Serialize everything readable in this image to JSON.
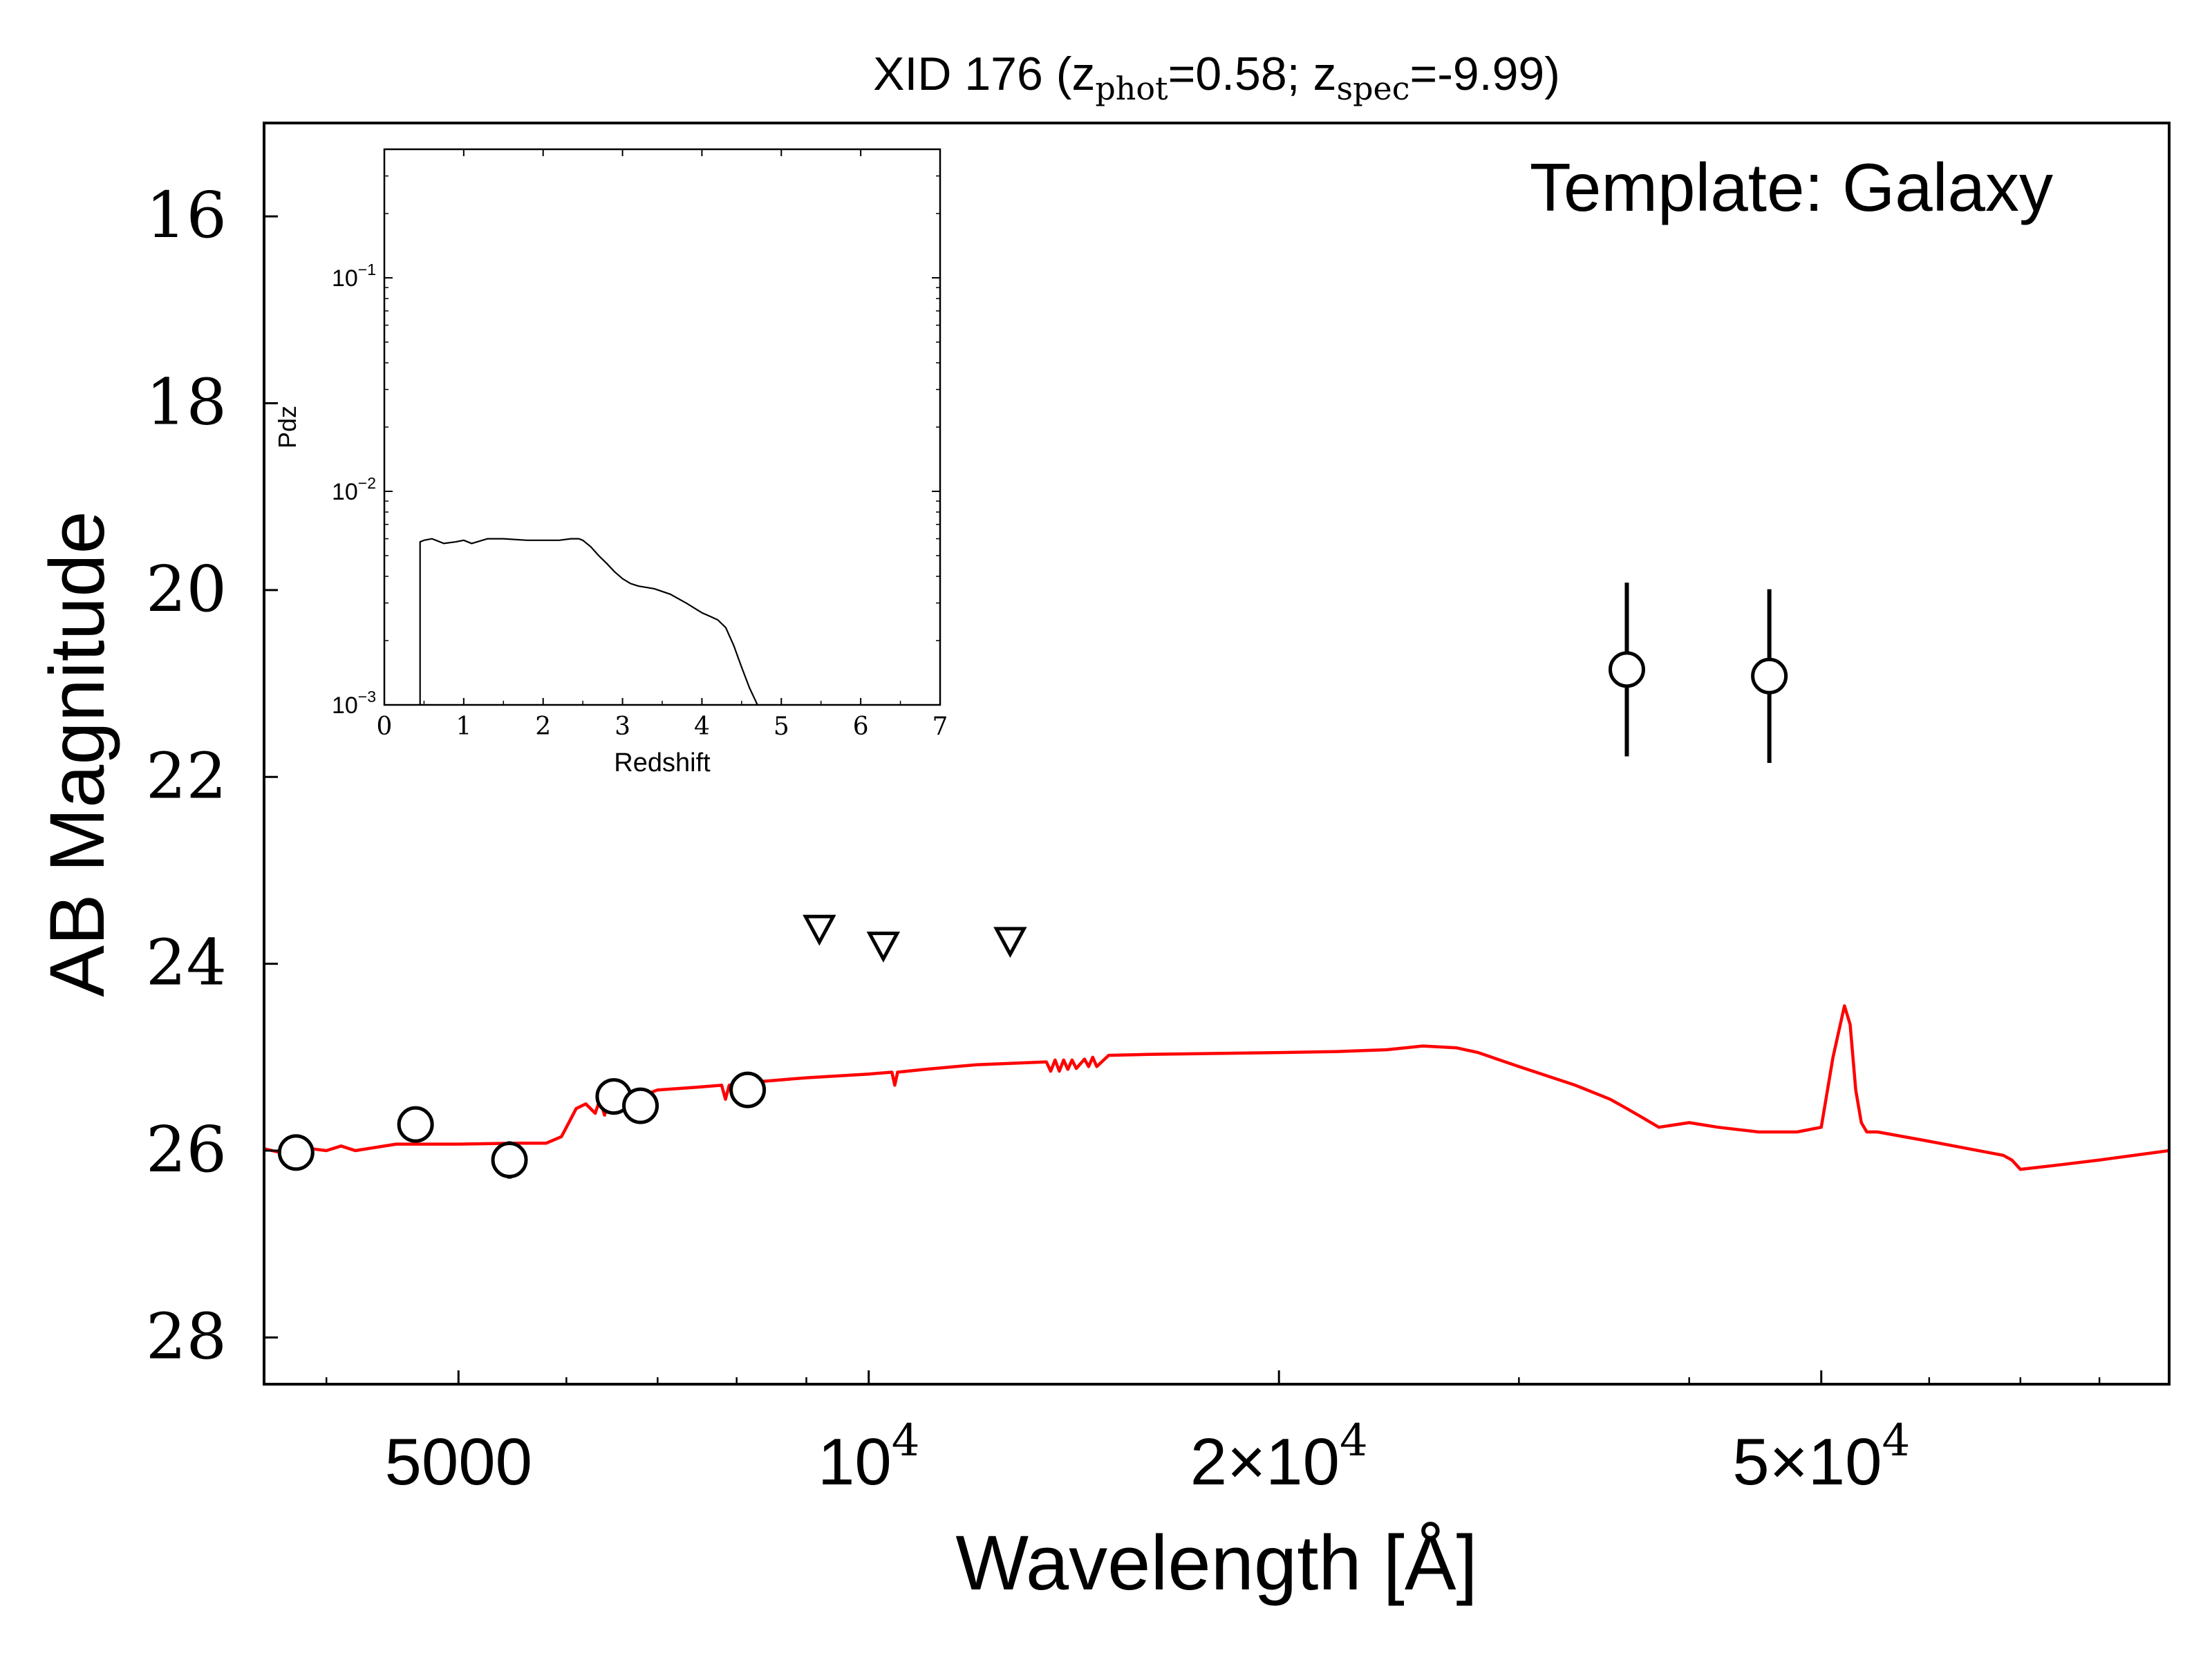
{
  "chart_data": [
    {
      "type": "scatter",
      "title": {
        "prefix": "XID 176 (z",
        "phot_sub": "phot",
        "mid": "=0.58; z",
        "spec_sub": "spec",
        "suffix": "=-9.99)"
      },
      "annotation": "Template: Galaxy",
      "xlabel": "Wavelength [Å]",
      "ylabel": "AB Magnitude",
      "xscale": "log",
      "xlim": [
        3600,
        90000
      ],
      "ylim": [
        28.5,
        15.0
      ],
      "y_inverted": true,
      "xticks": [
        {
          "value": 5000,
          "label": "5000"
        },
        {
          "value": 10000,
          "base": "10",
          "exp": "4"
        },
        {
          "value": 20000,
          "base": "2×10",
          "exp": "4"
        },
        {
          "value": 50000,
          "base": "5×10",
          "exp": "4"
        }
      ],
      "yticks": [
        {
          "value": 16,
          "label": "16"
        },
        {
          "value": 18,
          "label": "18"
        },
        {
          "value": 20,
          "label": "20"
        },
        {
          "value": 22,
          "label": "22"
        },
        {
          "value": 24,
          "label": "24"
        },
        {
          "value": 26,
          "label": "26"
        },
        {
          "value": 28,
          "label": "28"
        }
      ],
      "series": [
        {
          "kind": "detections",
          "marker": "open-circle",
          "x": [
            3800,
            4650,
            5450,
            6500,
            6800,
            8150,
            36000,
            45800
          ],
          "y": [
            26.02,
            25.72,
            26.1,
            25.42,
            25.52,
            25.35,
            20.85,
            20.92
          ],
          "yerr": [
            0.15,
            0.12,
            0.2,
            0.15,
            0.08,
            0.1,
            0.93,
            0.93
          ]
        },
        {
          "kind": "upper_limits",
          "marker": "down-triangle",
          "x": [
            9200,
            10250,
            12700
          ],
          "y": [
            23.62,
            23.8,
            23.75
          ]
        },
        {
          "kind": "template",
          "color": "#ff0000",
          "x": [
            3600,
            3700,
            3750,
            3800,
            3900,
            4000,
            4100,
            4200,
            4500,
            5000,
            5500,
            5800,
            5950,
            6000,
            6050,
            6100,
            6200,
            6300,
            6350,
            6400,
            6450,
            6500,
            6550,
            6600,
            6700,
            6800,
            7000,
            7500,
            7800,
            7850,
            7900,
            8000,
            8500,
            9000,
            10000,
            10400,
            10450,
            10500,
            11000,
            12000,
            13500,
            13600,
            13700,
            13800,
            13900,
            14000,
            14100,
            14200,
            14400,
            14500,
            14600,
            14700,
            15000,
            16000,
            18000,
            20000,
            22000,
            24000,
            25500,
            27000,
            28000,
            30000,
            33000,
            35000,
            36000,
            37000,
            38000,
            40000,
            42000,
            45000,
            48000,
            50000,
            51000,
            52000,
            52500,
            53000,
            53500,
            54000,
            54500,
            55000,
            60000,
            68000,
            69000,
            70000,
            72000,
            75000,
            80000,
            90000
          ],
          "y": [
            25.98,
            26.02,
            25.98,
            26.05,
            25.98,
            26.0,
            25.95,
            26.0,
            25.93,
            25.93,
            25.92,
            25.92,
            25.85,
            25.75,
            25.65,
            25.55,
            25.5,
            25.6,
            25.45,
            25.62,
            25.45,
            25.6,
            25.45,
            25.5,
            25.55,
            25.42,
            25.35,
            25.32,
            25.3,
            25.45,
            25.3,
            25.28,
            25.25,
            25.22,
            25.18,
            25.16,
            25.3,
            25.16,
            25.13,
            25.08,
            25.05,
            25.15,
            25.03,
            25.15,
            25.03,
            25.13,
            25.03,
            25.12,
            25.02,
            25.1,
            25.0,
            25.1,
            24.98,
            24.97,
            24.96,
            24.95,
            24.94,
            24.92,
            24.88,
            24.9,
            24.95,
            25.1,
            25.3,
            25.45,
            25.55,
            25.65,
            25.75,
            25.7,
            25.75,
            25.8,
            25.8,
            25.75,
            25.0,
            24.45,
            24.65,
            25.35,
            25.7,
            25.8,
            25.8,
            25.8,
            25.9,
            26.05,
            26.1,
            26.2,
            26.18,
            26.15,
            26.1,
            26.0
          ]
        }
      ]
    },
    {
      "type": "line",
      "role": "inset",
      "xlabel": "Redshift",
      "ylabel": "Pdz",
      "yscale": "log",
      "xlim": [
        0,
        7
      ],
      "ylim": [
        0.001,
        0.4
      ],
      "xticks": [
        0,
        1,
        2,
        3,
        4,
        5,
        6,
        7
      ],
      "yticks": [
        {
          "value": 0.001,
          "base": "10",
          "exp": "−3"
        },
        {
          "value": 0.01,
          "base": "10",
          "exp": "−2"
        },
        {
          "value": 0.1,
          "base": "10",
          "exp": "−1"
        }
      ],
      "series": [
        {
          "x": [
            0.45,
            0.45,
            0.5,
            0.6,
            0.75,
            0.9,
            1.0,
            1.1,
            1.3,
            1.5,
            1.8,
            2.0,
            2.2,
            2.35,
            2.45,
            2.5,
            2.6,
            2.7,
            2.8,
            2.9,
            3.0,
            3.1,
            3.2,
            3.4,
            3.6,
            3.8,
            4.0,
            4.1,
            4.2,
            4.3,
            4.4,
            4.5,
            4.6,
            4.7
          ],
          "y": [
            0.001,
            0.0058,
            0.0059,
            0.006,
            0.0057,
            0.0058,
            0.0059,
            0.0057,
            0.006,
            0.006,
            0.0059,
            0.0059,
            0.0059,
            0.006,
            0.006,
            0.0059,
            0.0055,
            0.005,
            0.0046,
            0.0042,
            0.0039,
            0.0037,
            0.0036,
            0.0035,
            0.0033,
            0.003,
            0.0027,
            0.0026,
            0.0025,
            0.0023,
            0.0019,
            0.0015,
            0.0012,
            0.001
          ]
        }
      ]
    }
  ]
}
